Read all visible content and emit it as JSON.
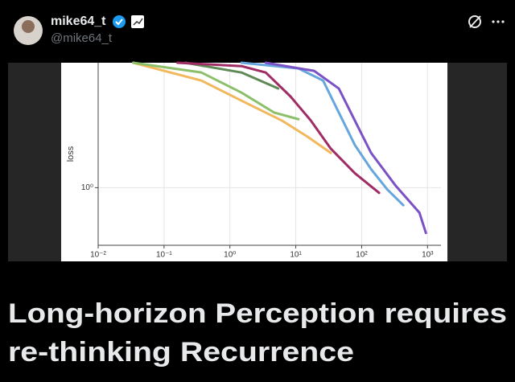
{
  "post": {
    "author": "mike64_t",
    "handle": "@mike64_t",
    "title_lines": [
      "Long-horizon Perception requires",
      "re-thinking Recurrence"
    ]
  },
  "chart_data": {
    "type": "line",
    "ylabel": "loss",
    "log_x": true,
    "log_y": true,
    "grid": true,
    "xlim": [
      0.01,
      1600
    ],
    "ylim": [
      0.5,
      4.5
    ],
    "xticks": [
      {
        "value": 0.01,
        "label": "10⁻²"
      },
      {
        "value": 0.1,
        "label": "10⁻¹"
      },
      {
        "value": 1,
        "label": "10⁰"
      },
      {
        "value": 10,
        "label": "10¹"
      },
      {
        "value": 100,
        "label": "10²"
      },
      {
        "value": 1000,
        "label": "10³"
      }
    ],
    "yticks": [
      {
        "value": 1,
        "label": "10⁰"
      }
    ],
    "series": [
      {
        "color": "#f2b85e",
        "x": [
          0.034,
          0.37,
          1.5,
          6.2,
          15,
          34
        ],
        "values": [
          4.5,
          3.63,
          2.85,
          2.24,
          1.85,
          1.52
        ]
      },
      {
        "color": "#8cbf6a",
        "x": [
          0.034,
          0.37,
          1.5,
          4.7,
          11
        ],
        "values": [
          4.5,
          4.0,
          3.14,
          2.47,
          2.28
        ]
      },
      {
        "color": "#5f8a55",
        "x": [
          0.21,
          1.5,
          5.4
        ],
        "values": [
          4.5,
          4.0,
          3.3
        ]
      },
      {
        "color": "#a02c66",
        "x": [
          0.16,
          1.5,
          3.5,
          8.3,
          17,
          34,
          79,
          184
        ],
        "values": [
          4.5,
          4.32,
          4.0,
          3.0,
          2.24,
          1.6,
          1.19,
          0.94
        ]
      },
      {
        "color": "#66a6dc",
        "x": [
          1.5,
          11,
          26,
          45,
          79,
          139,
          244,
          429
        ],
        "values": [
          4.5,
          4.2,
          3.63,
          2.47,
          1.67,
          1.25,
          0.98,
          0.81
        ]
      },
      {
        "color": "#7b52c6",
        "x": [
          3.5,
          19,
          45,
          79,
          139,
          324,
          754,
          945
        ],
        "values": [
          4.5,
          4.08,
          3.3,
          2.24,
          1.52,
          1.03,
          0.74,
          0.58
        ]
      }
    ]
  }
}
